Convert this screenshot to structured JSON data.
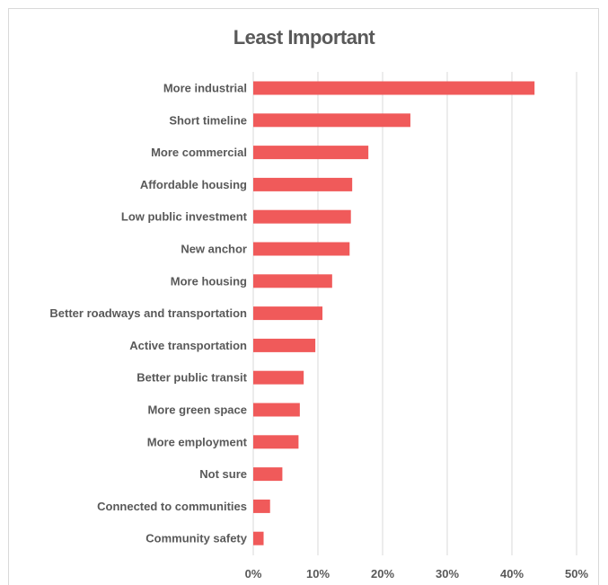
{
  "chart_data": {
    "type": "bar",
    "orientation": "horizontal",
    "title": "Least Important",
    "categories": [
      "More industrial",
      "Short timeline",
      "More commercial",
      "Affordable housing",
      "Low public investment",
      "New anchor",
      "More housing",
      "Better roadways and transportation",
      "Active transportation",
      "Better public transit",
      "More green space",
      "More employment",
      "Not sure",
      "Connected to communities",
      "Community safety"
    ],
    "values": [
      43.5,
      24.3,
      17.8,
      15.3,
      15.1,
      14.9,
      12.2,
      10.7,
      9.6,
      7.8,
      7.2,
      7.0,
      4.5,
      2.6,
      1.6
    ],
    "xlim": [
      0,
      50
    ],
    "xticks": [
      "0%",
      "10%",
      "20%",
      "30%",
      "40%",
      "50%"
    ],
    "xtick_values": [
      0,
      10,
      20,
      30,
      40,
      50
    ],
    "grid": "vertical",
    "bar_color": "#f05a5a",
    "grid_color": "#d9d9d9",
    "text_color": "#595959"
  }
}
